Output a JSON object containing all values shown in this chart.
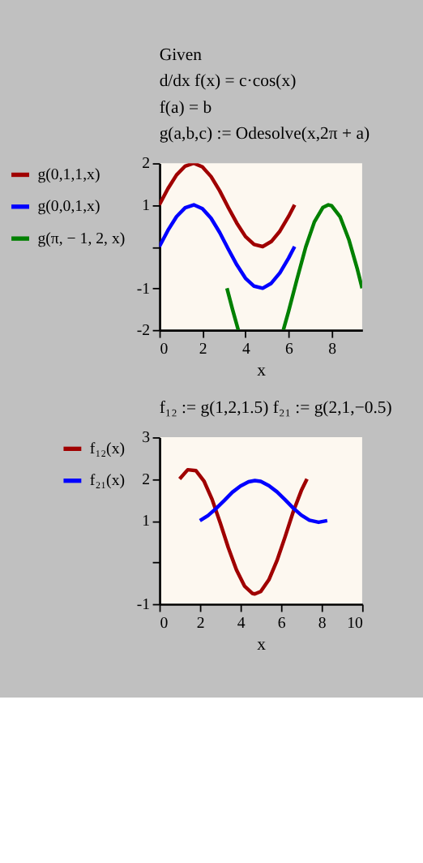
{
  "chart_data": [
    {
      "type": "line",
      "annotations": [
        "Given",
        "d/dx f(x) = c·cos(x)",
        "f(a) = b",
        "g(a,b,c) := Odesolve(x,2π + a)"
      ],
      "xlabel": "x",
      "xlim": [
        0,
        9.42
      ],
      "xticks": [
        0,
        2,
        4,
        6,
        8
      ],
      "ylim": [
        -2,
        2
      ],
      "yticks": [
        -2,
        -1,
        {
          "value": 0,
          "label": null
        },
        1,
        2
      ],
      "grid": false,
      "legend": "left",
      "marker": "none",
      "line_style": "solid",
      "series": [
        {
          "name": "g(0,1,1,x)",
          "color": "#a00000",
          "x": [
            0,
            0.4,
            0.8,
            1.2,
            1.6,
            2.0,
            2.4,
            2.8,
            3.2,
            3.6,
            4.0,
            4.4,
            4.8,
            5.2,
            5.6,
            6.0,
            6.283
          ],
          "values": [
            1,
            1.39,
            1.72,
            1.93,
            2.0,
            1.91,
            1.68,
            1.34,
            0.94,
            0.56,
            0.24,
            0.05,
            0,
            0.12,
            0.37,
            0.72,
            1
          ]
        },
        {
          "name": "g(0,0,1,x)",
          "color": "#0000ff",
          "x": [
            0,
            0.4,
            0.8,
            1.2,
            1.6,
            2.0,
            2.4,
            2.8,
            3.2,
            3.6,
            4.0,
            4.4,
            4.8,
            5.2,
            5.6,
            6.0,
            6.283
          ],
          "values": [
            0,
            0.39,
            0.72,
            0.93,
            1.0,
            0.91,
            0.68,
            0.34,
            -0.06,
            -0.44,
            -0.76,
            -0.95,
            -1.0,
            -0.88,
            -0.63,
            -0.28,
            0
          ]
        },
        {
          "name": "g(π, − 1, 2, x)",
          "color": "#008000",
          "x": [
            3.14,
            3.4,
            3.665,
            4.7,
            5.76,
            6.0,
            6.4,
            6.8,
            7.2,
            7.6,
            7.85,
            8.0,
            8.4,
            8.8,
            9.2,
            9.42
          ],
          "values": [
            -1,
            -1.51,
            -2,
            null,
            -2,
            -1.56,
            -0.77,
            -0.01,
            0.59,
            0.94,
            1.0,
            0.98,
            0.71,
            0.17,
            -0.55,
            -1
          ]
        }
      ]
    },
    {
      "type": "line",
      "annotations": [
        "f₁₂ := g(1,2,1.5)      f₂₁ := g(2,1,−0.5)"
      ],
      "xlabel": "x",
      "xlim": [
        0,
        10
      ],
      "xticks": [
        0,
        2,
        4,
        6,
        8,
        10
      ],
      "ylim": [
        -1,
        3
      ],
      "yticks": [
        -1,
        {
          "value": 0,
          "label": null
        },
        1,
        2,
        3
      ],
      "grid": false,
      "legend": "left",
      "marker": "none",
      "line_style": "solid",
      "series": [
        {
          "name": "f₁₂(x)",
          "color": "#a00000",
          "x": [
            1.0,
            1.4,
            1.8,
            2.2,
            2.6,
            3.0,
            3.4,
            3.8,
            4.2,
            4.6,
            4.71,
            5.0,
            5.4,
            5.8,
            6.2,
            6.6,
            7.0,
            7.28
          ],
          "values": [
            2.0,
            2.22,
            2.2,
            1.95,
            1.51,
            0.95,
            0.35,
            -0.18,
            -0.57,
            -0.75,
            -0.76,
            -0.7,
            -0.42,
            0.04,
            0.61,
            1.21,
            1.72,
            2.0
          ]
        },
        {
          "name": "f₂₁(x)",
          "color": "#0000ff",
          "x": [
            2.0,
            2.4,
            2.8,
            3.2,
            3.6,
            4.0,
            4.4,
            4.71,
            5.0,
            5.4,
            5.8,
            6.2,
            6.6,
            7.0,
            7.4,
            7.85,
            8.28
          ],
          "values": [
            1.0,
            1.12,
            1.29,
            1.48,
            1.68,
            1.83,
            1.93,
            1.96,
            1.94,
            1.84,
            1.69,
            1.5,
            1.3,
            1.13,
            1.01,
            0.96,
            1.0
          ]
        }
      ]
    }
  ]
}
